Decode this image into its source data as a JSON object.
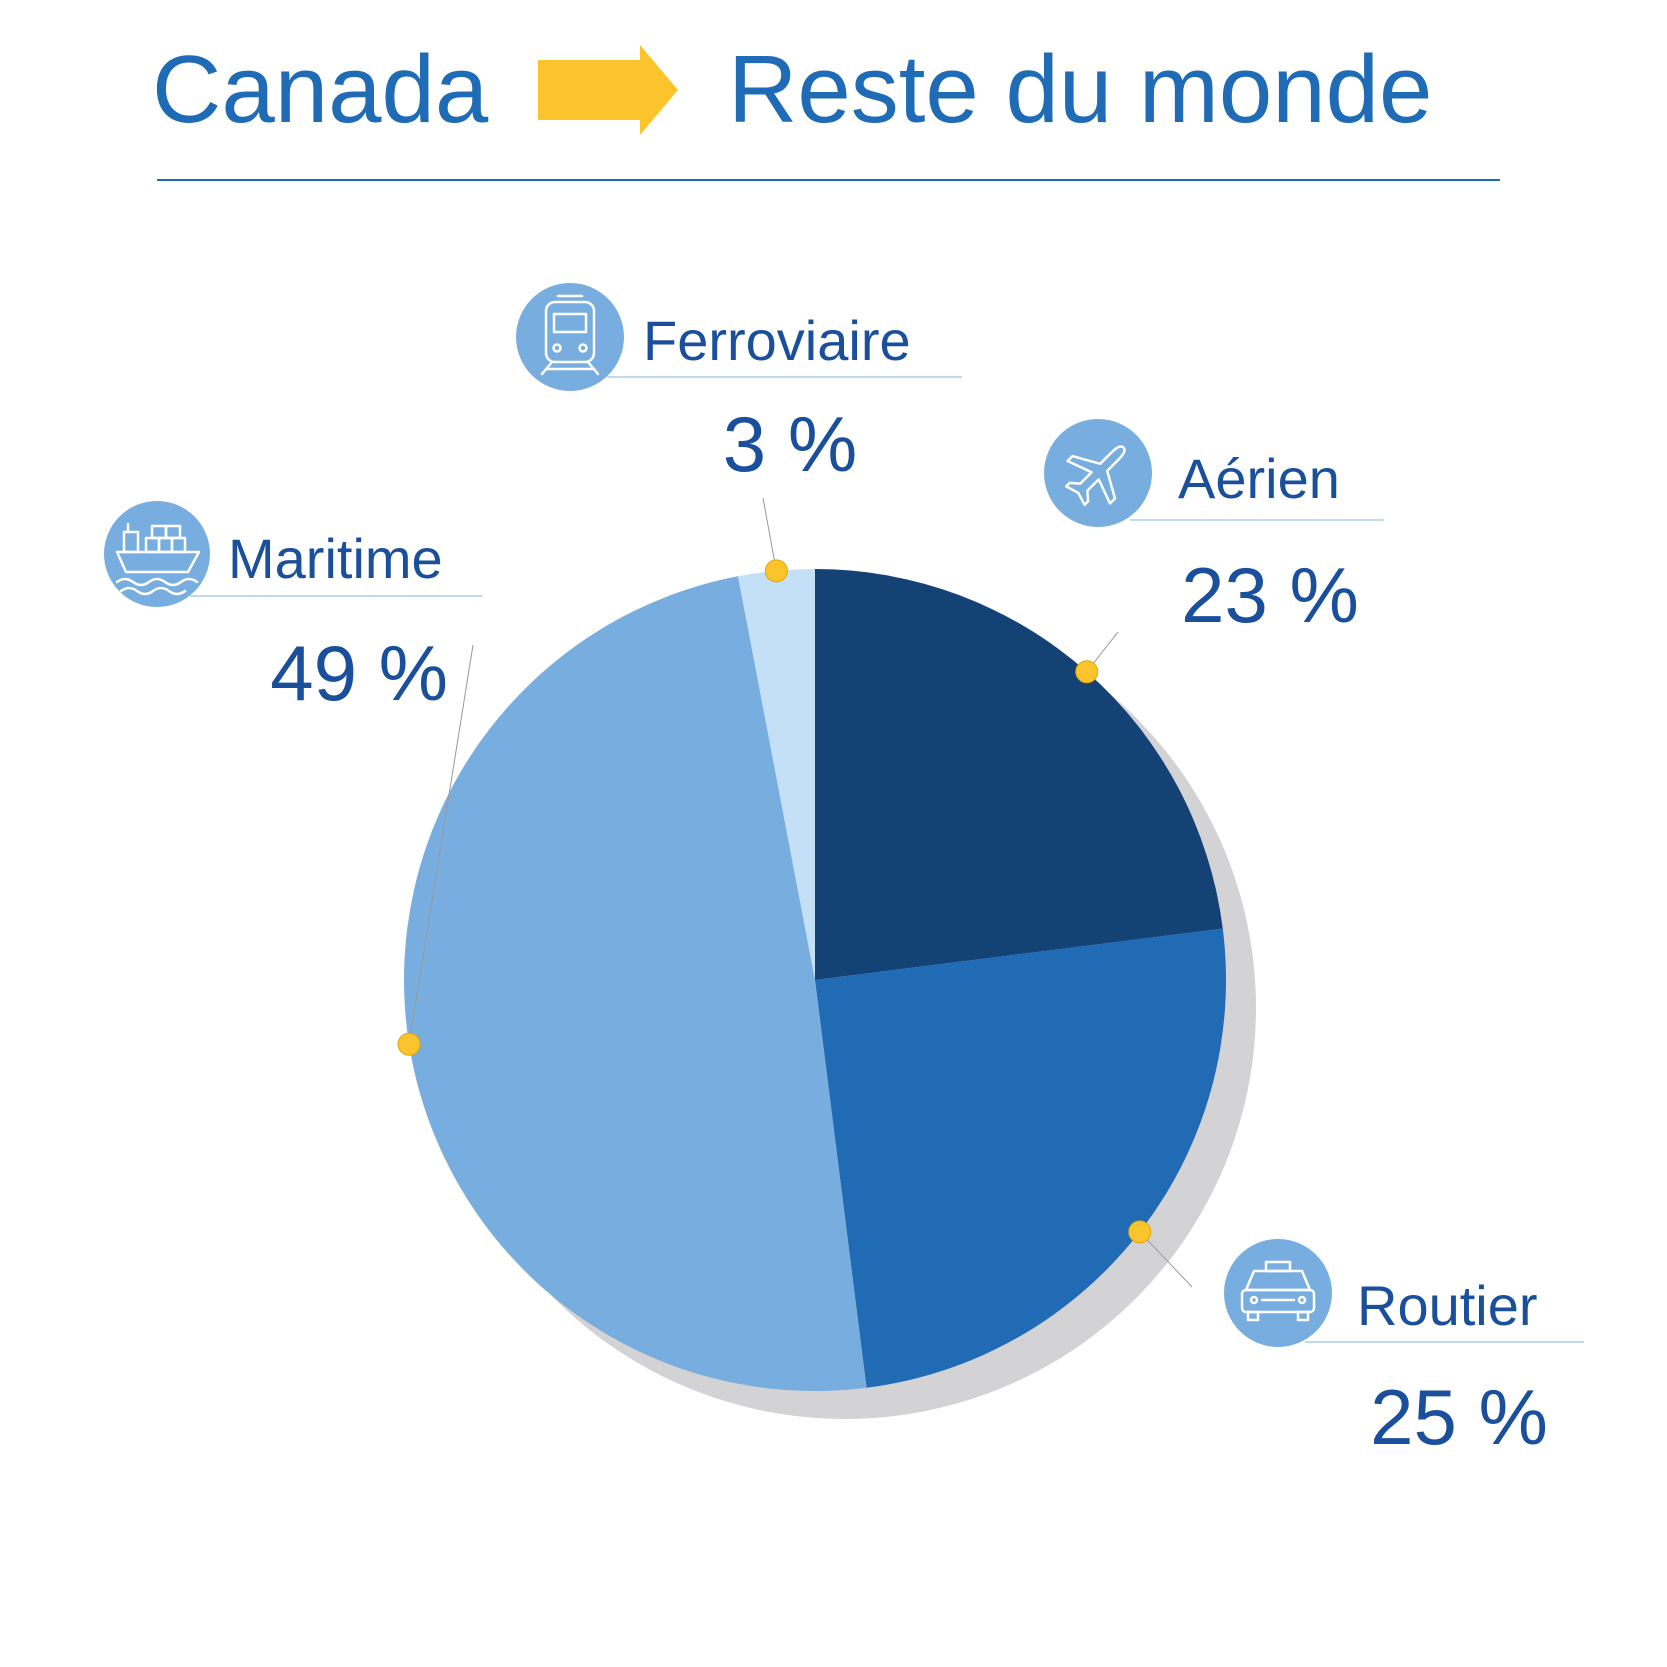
{
  "header": {
    "from_label": "Canada",
    "to_label": "Reste du monde",
    "arrow_icon": "arrow-right-icon",
    "arrow_color": "#fcc42c",
    "text_color": "#1f6bb5",
    "divider_color": "#1f6bb5"
  },
  "chart_data": {
    "type": "pie",
    "title": "",
    "start_angle_deg": 0,
    "direction": "clockwise",
    "legend": "none",
    "slices": [
      {
        "label": "Aérien",
        "value": 23,
        "value_label": "23 %",
        "color": "#144275",
        "icon": "airplane-icon"
      },
      {
        "label": "Routier",
        "value": 25,
        "value_label": "25 %",
        "color": "#216bb4",
        "icon": "car-icon"
      },
      {
        "label": "Maritime",
        "value": 49,
        "value_label": "49 %",
        "color": "#78aedf",
        "icon": "ship-icon"
      },
      {
        "label": "Ferroviaire",
        "value": 3,
        "value_label": "3 %",
        "color": "#c4e0f6",
        "icon": "train-icon"
      }
    ],
    "shadow_color": "#d3d3d5",
    "marker_color": "#fcc42c",
    "label_color": "#1a4f9c",
    "icon_background": "#78aedf"
  }
}
